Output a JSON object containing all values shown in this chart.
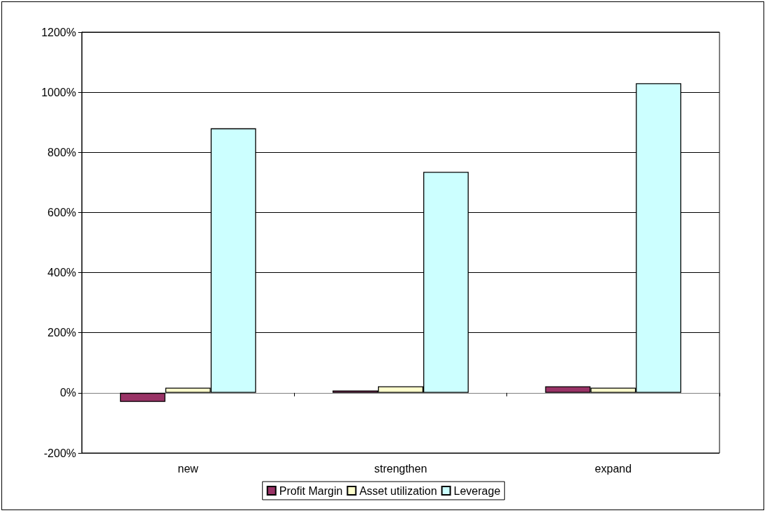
{
  "chart_data": {
    "type": "bar",
    "categories": [
      "new",
      "strengthen",
      "expand"
    ],
    "series": [
      {
        "name": "Profit Margin",
        "color": "#993366",
        "values": [
          -30,
          8,
          22
        ]
      },
      {
        "name": "Asset utilization",
        "color": "#ffffcc",
        "values": [
          17,
          22,
          17
        ]
      },
      {
        "name": "Leverage",
        "color": "#ccffff",
        "values": [
          880,
          735,
          1030
        ]
      }
    ],
    "ylim": [
      -200,
      1200
    ],
    "yticks": [
      {
        "value": -200,
        "label": "-200%"
      },
      {
        "value": 0,
        "label": "0%"
      },
      {
        "value": 200,
        "label": "200%"
      },
      {
        "value": 400,
        "label": "400%"
      },
      {
        "value": 600,
        "label": "600%"
      },
      {
        "value": 800,
        "label": "800%"
      },
      {
        "value": 1000,
        "label": "1000%"
      },
      {
        "value": 1200,
        "label": "1200%"
      }
    ],
    "grid": "y",
    "legend": "bottom"
  }
}
